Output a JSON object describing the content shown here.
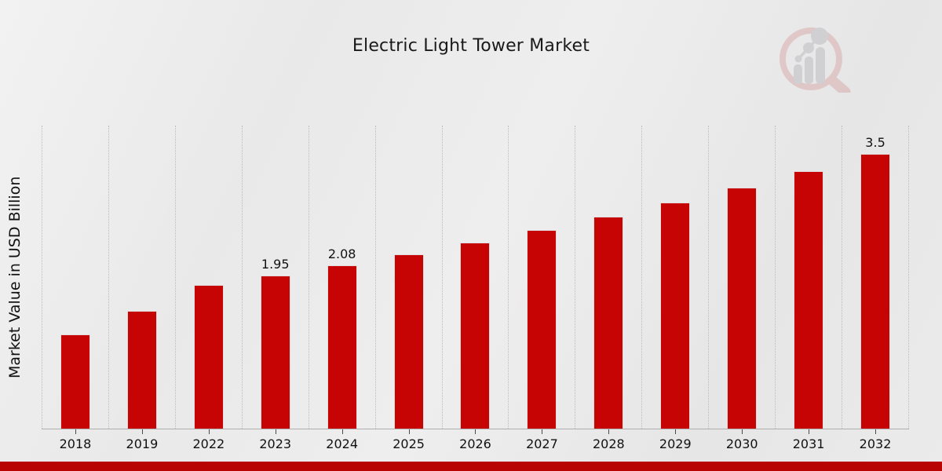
{
  "title": "Electric Light Tower Market",
  "y_axis_label": "Market Value in USD Billion",
  "colors": {
    "bar": "#c70404",
    "bottom_strip": "#b90404",
    "grid_line": "#bcbcbc",
    "text": "#111111",
    "logo_ring_pink": "#d9a8a8",
    "logo_bars_gray": "#b9b9bf"
  },
  "chart_data": {
    "type": "bar",
    "title": "Electric Light Tower Market",
    "xlabel": "",
    "ylabel": "Market Value in USD Billion",
    "categories": [
      "2018",
      "2019",
      "2022",
      "2023",
      "2024",
      "2025",
      "2026",
      "2027",
      "2028",
      "2029",
      "2030",
      "2031",
      "2032"
    ],
    "values": [
      1.2,
      1.5,
      1.83,
      1.95,
      2.08,
      2.22,
      2.37,
      2.53,
      2.7,
      2.88,
      3.07,
      3.28,
      3.5
    ],
    "bar_labels": [
      "",
      "",
      "",
      "1.95",
      "2.08",
      "",
      "",
      "",
      "",
      "",
      "",
      "",
      "3.5"
    ],
    "ylim": [
      0,
      3.86
    ],
    "y_ticks_visible": false,
    "grid": "vertical-dotted",
    "legend": "none",
    "bar_color": "#c70404",
    "units": "USD Billion"
  }
}
